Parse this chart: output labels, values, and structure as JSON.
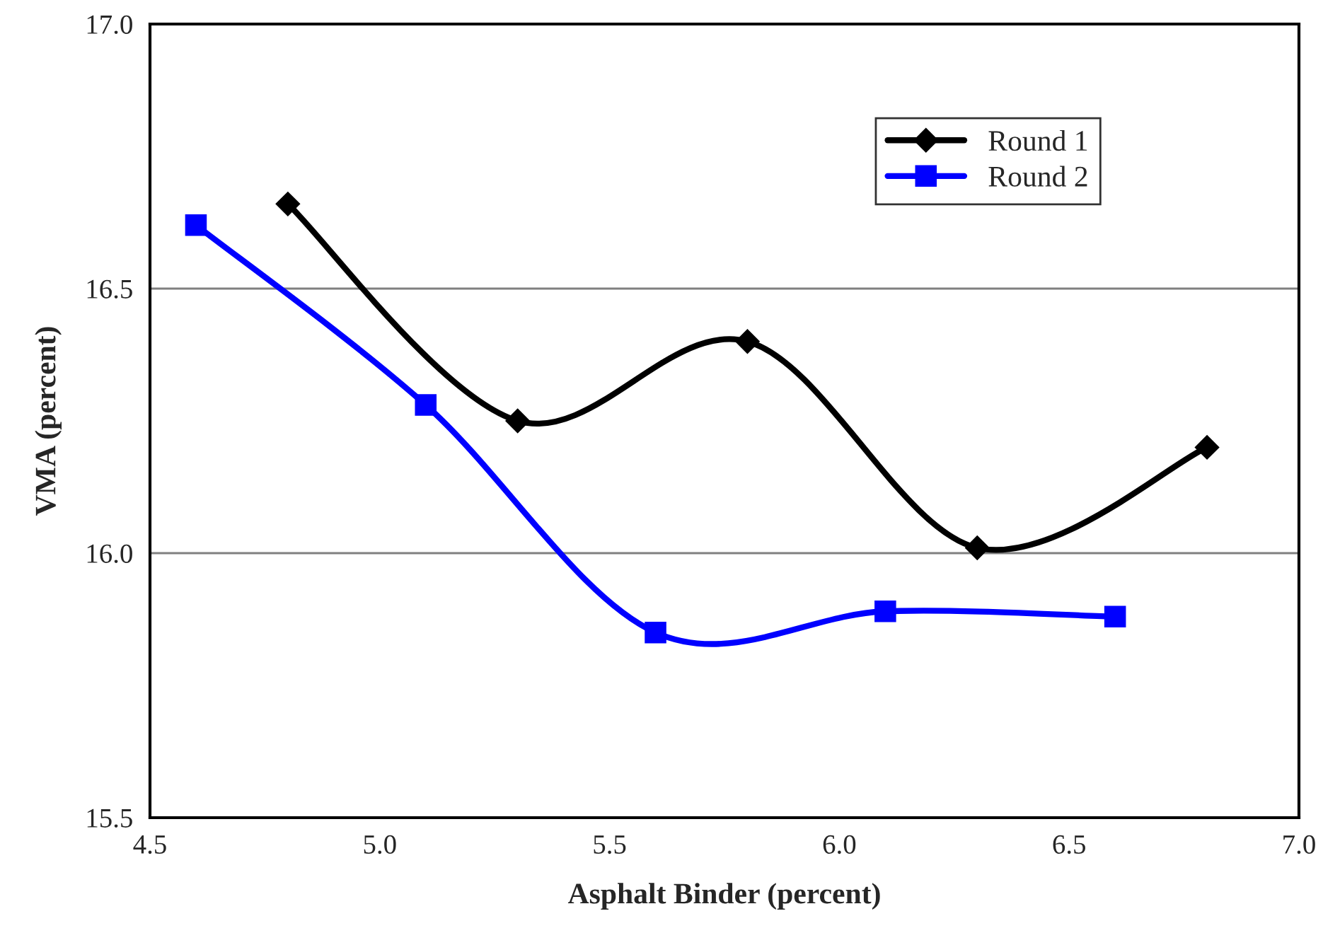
{
  "chart_data": {
    "type": "line",
    "xlabel": "Asphalt Binder (percent)",
    "ylabel": "VMA (percent)",
    "xlim": [
      4.5,
      7.0
    ],
    "xticks": [
      {
        "value": 4.5,
        "label": "4.5"
      },
      {
        "value": 5.0,
        "label": "5.0"
      },
      {
        "value": 5.5,
        "label": "5.5"
      },
      {
        "value": 6.0,
        "label": "6.0"
      },
      {
        "value": 6.5,
        "label": "6.5"
      },
      {
        "value": 7.0,
        "label": "7.0"
      }
    ],
    "ylim": [
      15.5,
      17.0
    ],
    "yticks": [
      {
        "value": 15.5,
        "label": "15.5"
      },
      {
        "value": 16.0,
        "label": "16.0"
      },
      {
        "value": 16.5,
        "label": "16.5"
      },
      {
        "value": 17.0,
        "label": "17.0"
      }
    ],
    "grid": "y",
    "legend": "top right",
    "series": [
      {
        "name": "Round 1",
        "color": "#000000",
        "marker": "diamond",
        "x": [
          4.8,
          5.3,
          5.8,
          6.3,
          6.8
        ],
        "values": [
          16.66,
          16.25,
          16.4,
          16.01,
          16.2
        ]
      },
      {
        "name": "Round 2",
        "color": "#0000ff",
        "marker": "square",
        "x": [
          4.6,
          5.1,
          5.6,
          6.1,
          6.6
        ],
        "values": [
          16.62,
          16.28,
          15.85,
          15.89,
          15.88
        ]
      }
    ]
  }
}
